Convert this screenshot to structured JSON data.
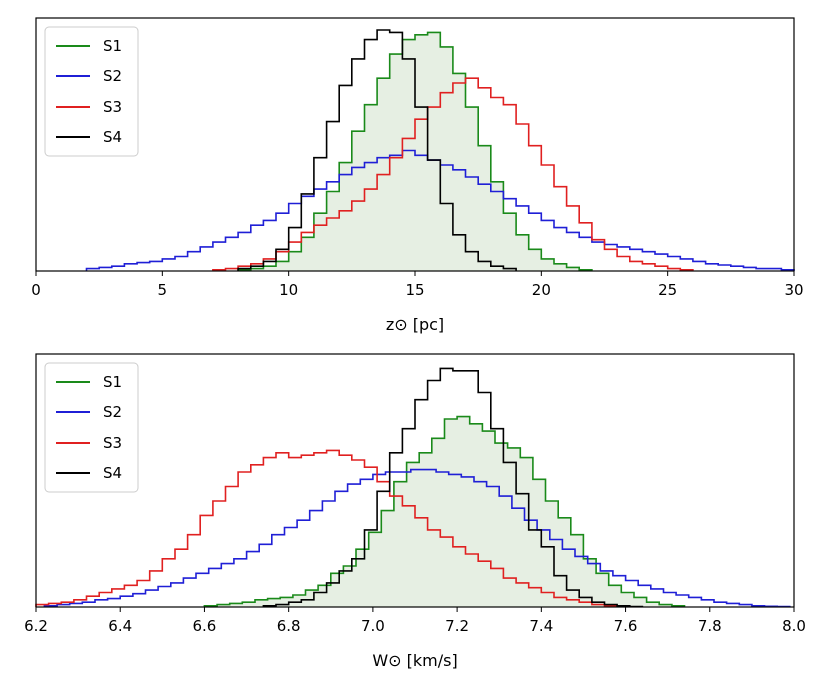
{
  "chart_data": [
    {
      "type": "histogram",
      "xlabel": "z⊙  [pc]",
      "xlim": [
        0,
        30
      ],
      "ylim": [
        0,
        100
      ],
      "xticks": [
        0,
        5,
        10,
        15,
        20,
        25,
        30
      ],
      "xtick_labels": [
        "0",
        "5",
        "10",
        "15",
        "20",
        "25",
        "30"
      ],
      "legend_location": "upper-left",
      "series": [
        {
          "name": "S1",
          "color": "#1a8a1a",
          "fill": "#e6efe3",
          "bin_edges": [
            8.0,
            8.5,
            9.0,
            9.5,
            10.0,
            10.5,
            11.0,
            11.5,
            12.0,
            12.5,
            13.0,
            13.5,
            14.0,
            14.5,
            15.0,
            15.5,
            16.0,
            16.5,
            17.0,
            17.5,
            18.0,
            18.5,
            19.0,
            19.5,
            20.0,
            20.5,
            21.0,
            21.5,
            22.0
          ],
          "values": [
            0.5,
            1,
            2,
            4,
            8,
            14,
            24,
            33,
            45,
            58,
            69,
            80,
            90,
            96,
            98,
            99,
            93,
            82,
            68,
            52,
            37,
            24,
            15,
            9,
            5,
            3,
            1.5,
            0.5
          ]
        },
        {
          "name": "S2",
          "color": "#1f1fd6",
          "fill": "none",
          "bin_edges": [
            2.0,
            2.5,
            3.0,
            3.5,
            4.0,
            4.5,
            5.0,
            5.5,
            6.0,
            6.5,
            7.0,
            7.5,
            8.0,
            8.5,
            9.0,
            9.5,
            10.0,
            10.5,
            11.0,
            11.5,
            12.0,
            12.5,
            13.0,
            13.5,
            14.0,
            14.5,
            15.0,
            15.5,
            16.0,
            16.5,
            17.0,
            17.5,
            18.0,
            18.5,
            19.0,
            19.5,
            20.0,
            20.5,
            21.0,
            21.5,
            22.0,
            22.5,
            23.0,
            23.5,
            24.0,
            24.5,
            25.0,
            25.5,
            26.0,
            26.5,
            27.0,
            27.5,
            28.0,
            28.5,
            29.0,
            29.5,
            30.0
          ],
          "values": [
            1,
            1.5,
            2,
            3,
            3.5,
            4,
            5,
            6,
            8,
            10,
            12,
            14,
            16,
            19,
            21,
            24,
            28,
            31,
            34,
            37,
            40,
            43,
            45,
            47,
            48,
            50,
            48,
            46,
            44,
            42,
            39,
            36,
            33,
            30,
            27,
            24,
            21,
            18,
            16,
            14,
            12,
            11,
            10,
            9,
            8,
            7,
            6,
            5,
            4,
            3,
            2.5,
            2,
            1.5,
            1,
            1,
            0.5
          ]
        },
        {
          "name": "S3",
          "color": "#e02020",
          "fill": "none",
          "bin_edges": [
            7.0,
            7.5,
            8.0,
            8.5,
            9.0,
            9.5,
            10.0,
            10.5,
            11.0,
            11.5,
            12.0,
            12.5,
            13.0,
            13.5,
            14.0,
            14.5,
            15.0,
            15.5,
            16.0,
            16.5,
            17.0,
            17.5,
            18.0,
            18.5,
            19.0,
            19.5,
            20.0,
            20.5,
            21.0,
            21.5,
            22.0,
            22.5,
            23.0,
            23.5,
            24.0,
            24.5,
            25.0,
            25.5,
            26.0
          ],
          "values": [
            0.5,
            1,
            2,
            3,
            5,
            8,
            12,
            16,
            19,
            22,
            25,
            29,
            34,
            40,
            47,
            55,
            63,
            68,
            74,
            78,
            80,
            76,
            72,
            69,
            61,
            52,
            44,
            35,
            27,
            20,
            13,
            9,
            6,
            4,
            3,
            2,
            1,
            0.5
          ]
        },
        {
          "name": "S4",
          "color": "#000000",
          "fill": "none",
          "bin_edges": [
            8.0,
            8.5,
            9.0,
            9.5,
            10.0,
            10.5,
            11.0,
            11.5,
            12.0,
            12.5,
            13.0,
            13.5,
            14.0,
            14.5,
            15.0,
            15.5,
            16.0,
            16.5,
            17.0,
            17.5,
            18.0,
            18.5,
            19.0
          ],
          "values": [
            1,
            2,
            4,
            9,
            18,
            32,
            47,
            62,
            77,
            88,
            96,
            100,
            99,
            88,
            68,
            46,
            28,
            15,
            8,
            4,
            2,
            1
          ]
        }
      ]
    },
    {
      "type": "histogram",
      "xlabel": "W⊙  [km/s]",
      "xlim": [
        6.2,
        8.0
      ],
      "ylim": [
        0,
        100
      ],
      "xticks": [
        6.2,
        6.4,
        6.6,
        6.8,
        7.0,
        7.2,
        7.4,
        7.6,
        7.8,
        8.0
      ],
      "xtick_labels": [
        "6.2",
        "6.4",
        "6.6",
        "6.8",
        "7.0",
        "7.2",
        "7.4",
        "7.6",
        "7.8",
        "8.0"
      ],
      "legend_location": "upper-left",
      "series": [
        {
          "name": "S1",
          "color": "#1a8a1a",
          "fill": "#e6efe3",
          "bin_edges": [
            6.6,
            6.63,
            6.66,
            6.69,
            6.72,
            6.75,
            6.78,
            6.81,
            6.84,
            6.87,
            6.9,
            6.93,
            6.96,
            6.99,
            7.02,
            7.05,
            7.08,
            7.11,
            7.14,
            7.17,
            7.2,
            7.23,
            7.26,
            7.29,
            7.32,
            7.35,
            7.38,
            7.41,
            7.44,
            7.47,
            7.5,
            7.53,
            7.56,
            7.59,
            7.62,
            7.65,
            7.68,
            7.71,
            7.74
          ],
          "values": [
            0.5,
            1,
            1.5,
            2,
            3,
            3.5,
            4,
            5,
            7,
            9,
            14,
            17,
            24,
            31,
            40,
            52,
            60,
            64,
            70,
            78,
            79,
            76,
            73,
            68,
            66,
            62,
            53,
            44,
            37,
            30,
            20,
            14,
            9,
            6,
            4,
            2,
            1,
            0.5
          ]
        },
        {
          "name": "S2",
          "color": "#1f1fd6",
          "fill": "none",
          "bin_edges": [
            6.22,
            6.25,
            6.28,
            6.31,
            6.34,
            6.37,
            6.4,
            6.43,
            6.46,
            6.49,
            6.52,
            6.55,
            6.58,
            6.61,
            6.64,
            6.67,
            6.7,
            6.73,
            6.76,
            6.79,
            6.82,
            6.85,
            6.88,
            6.91,
            6.94,
            6.97,
            7.0,
            7.03,
            7.06,
            7.09,
            7.12,
            7.15,
            7.18,
            7.21,
            7.24,
            7.27,
            7.3,
            7.33,
            7.36,
            7.39,
            7.42,
            7.45,
            7.48,
            7.51,
            7.54,
            7.57,
            7.6,
            7.63,
            7.66,
            7.69,
            7.72,
            7.75,
            7.78,
            7.81,
            7.84,
            7.87,
            7.9,
            7.93,
            7.96,
            7.99
          ],
          "values": [
            0.5,
            1,
            1.5,
            2,
            3,
            3.5,
            4.5,
            5.5,
            7,
            8.5,
            10,
            12,
            14,
            16,
            18,
            20,
            23,
            26,
            30,
            33,
            36,
            40,
            44,
            48,
            51,
            53,
            55,
            56,
            56,
            57,
            57,
            56,
            55,
            54,
            52,
            50,
            46,
            41,
            36,
            32,
            28,
            24,
            21,
            18,
            15,
            13,
            11,
            9,
            7.5,
            6,
            5,
            4,
            3,
            2,
            1.5,
            1,
            0.5,
            0.3,
            0.2
          ]
        },
        {
          "name": "S3",
          "color": "#e02020",
          "fill": "none",
          "bin_edges": [
            6.2,
            6.23,
            6.26,
            6.29,
            6.32,
            6.35,
            6.38,
            6.41,
            6.44,
            6.47,
            6.5,
            6.53,
            6.56,
            6.59,
            6.62,
            6.65,
            6.68,
            6.71,
            6.74,
            6.77,
            6.8,
            6.83,
            6.86,
            6.89,
            6.92,
            6.95,
            6.98,
            7.01,
            7.04,
            7.07,
            7.1,
            7.13,
            7.16,
            7.19,
            7.22,
            7.25,
            7.28,
            7.31,
            7.34,
            7.37,
            7.4,
            7.43,
            7.46,
            7.49,
            7.52,
            7.55,
            7.58,
            7.61
          ],
          "values": [
            1,
            1.5,
            2,
            3,
            4.5,
            6,
            7.5,
            9,
            11,
            15,
            20,
            24,
            30,
            38,
            44,
            50,
            56,
            59,
            62,
            64,
            62,
            63,
            64,
            65,
            63,
            61,
            58,
            52,
            46,
            42,
            37,
            32,
            29,
            25,
            22,
            19,
            16,
            12,
            10,
            8,
            6,
            4,
            3,
            2,
            1,
            0.5,
            0.2
          ]
        },
        {
          "name": "S4",
          "color": "#000000",
          "fill": "none",
          "bin_edges": [
            6.74,
            6.77,
            6.8,
            6.83,
            6.86,
            6.89,
            6.92,
            6.95,
            6.98,
            7.01,
            7.04,
            7.07,
            7.1,
            7.13,
            7.16,
            7.19,
            7.22,
            7.25,
            7.28,
            7.31,
            7.34,
            7.37,
            7.4,
            7.43,
            7.46,
            7.49,
            7.52,
            7.55,
            7.58,
            7.61,
            7.64
          ],
          "values": [
            0.5,
            1,
            2,
            3,
            6,
            10,
            15,
            20,
            32,
            48,
            64,
            74,
            86,
            94,
            99,
            98,
            98,
            89,
            74,
            60,
            47,
            32,
            25,
            13,
            7,
            4,
            2,
            1,
            0.5,
            0.2
          ]
        }
      ]
    }
  ]
}
